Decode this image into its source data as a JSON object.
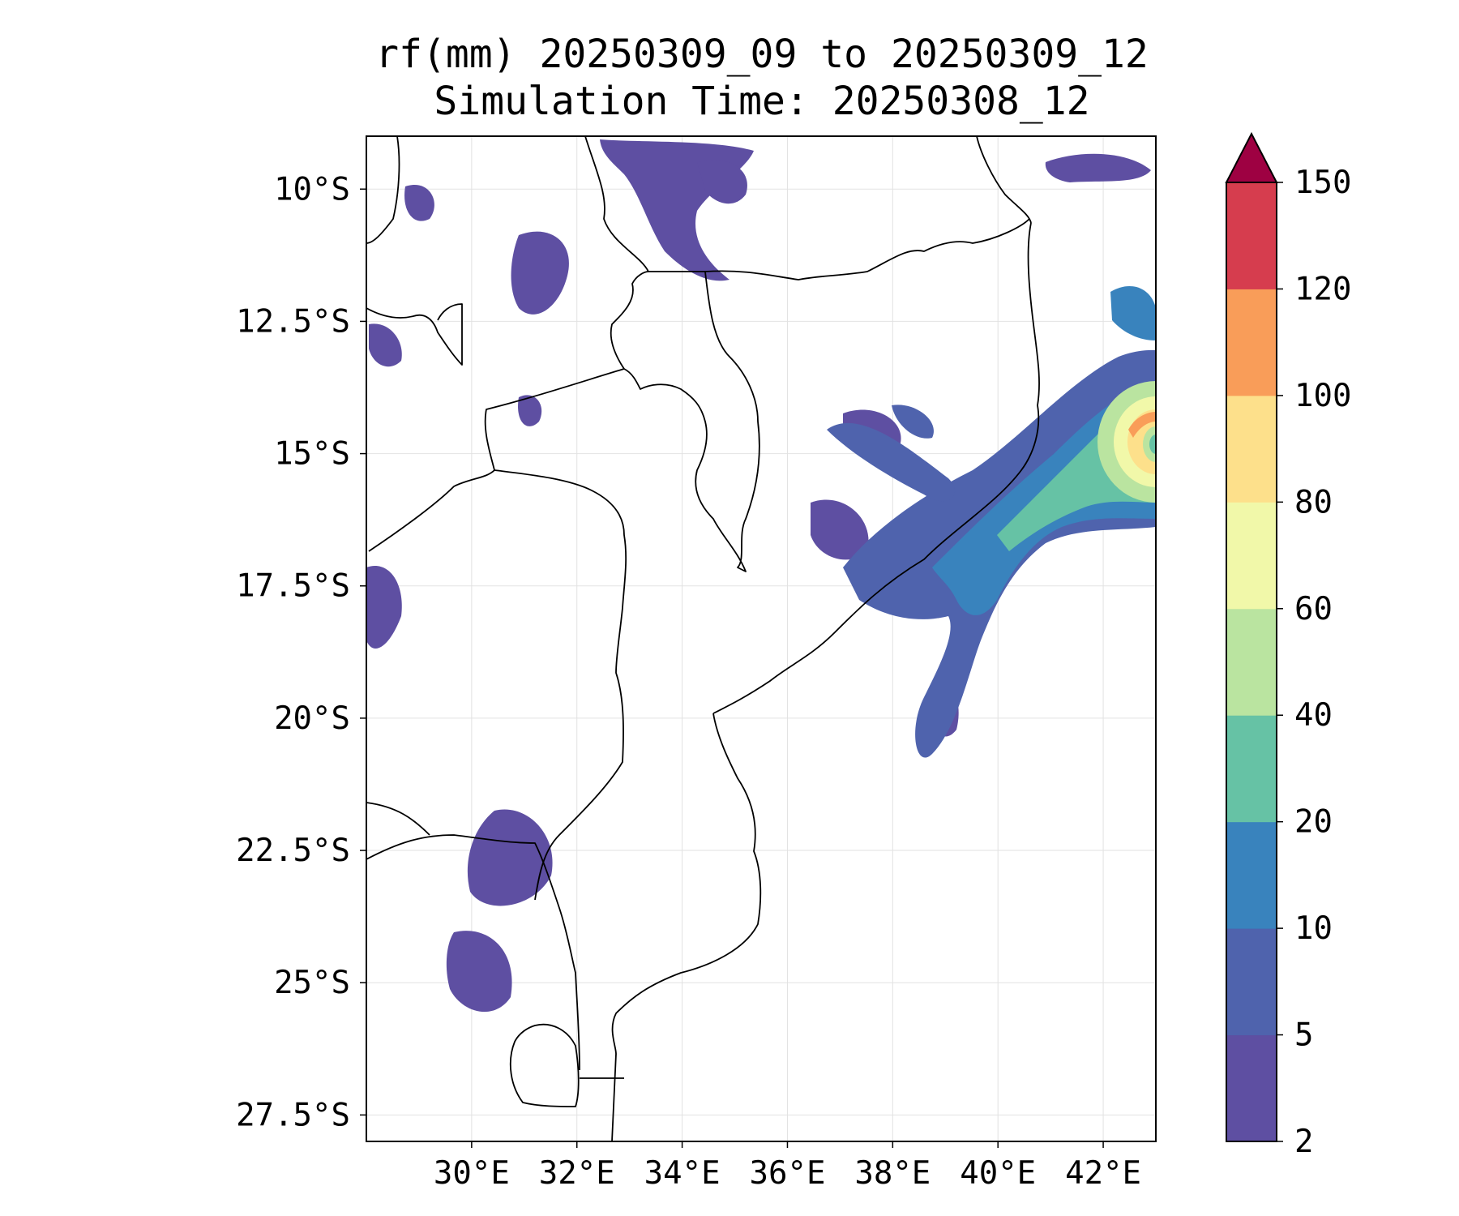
{
  "title": {
    "line1": "rf(mm) 20250309_09 to 20250309_12",
    "line2": "Simulation Time: 20250308_12"
  },
  "map": {
    "lon_range": [
      28,
      43
    ],
    "lat_range": [
      -28,
      -9
    ],
    "lon_ticks": [
      {
        "value": 30,
        "label": "30°E"
      },
      {
        "value": 32,
        "label": "32°E"
      },
      {
        "value": 34,
        "label": "34°E"
      },
      {
        "value": 36,
        "label": "36°E"
      },
      {
        "value": 38,
        "label": "38°E"
      },
      {
        "value": 40,
        "label": "40°E"
      },
      {
        "value": 42,
        "label": "42°E"
      }
    ],
    "lat_ticks": [
      {
        "value": -10,
        "label": "10°S"
      },
      {
        "value": -12.5,
        "label": "12.5°S"
      },
      {
        "value": -15,
        "label": "15°S"
      },
      {
        "value": -17.5,
        "label": "17.5°S"
      },
      {
        "value": -20,
        "label": "20°S"
      },
      {
        "value": -22.5,
        "label": "22.5°S"
      },
      {
        "value": -25,
        "label": "25°S"
      },
      {
        "value": -27.5,
        "label": "27.5°S"
      }
    ],
    "gridlines": true
  },
  "colorbar": {
    "levels": [
      "2",
      "5",
      "10",
      "20",
      "40",
      "60",
      "80",
      "100",
      "120",
      "150"
    ],
    "colors": [
      "#5e4fa2",
      "#4f63ad",
      "#3983bd",
      "#66c2a5",
      "#bae4a0",
      "#f1f8a9",
      "#fde08b",
      "#f99d59",
      "#d63d4e",
      "#9e0142"
    ],
    "extend": "max"
  }
}
